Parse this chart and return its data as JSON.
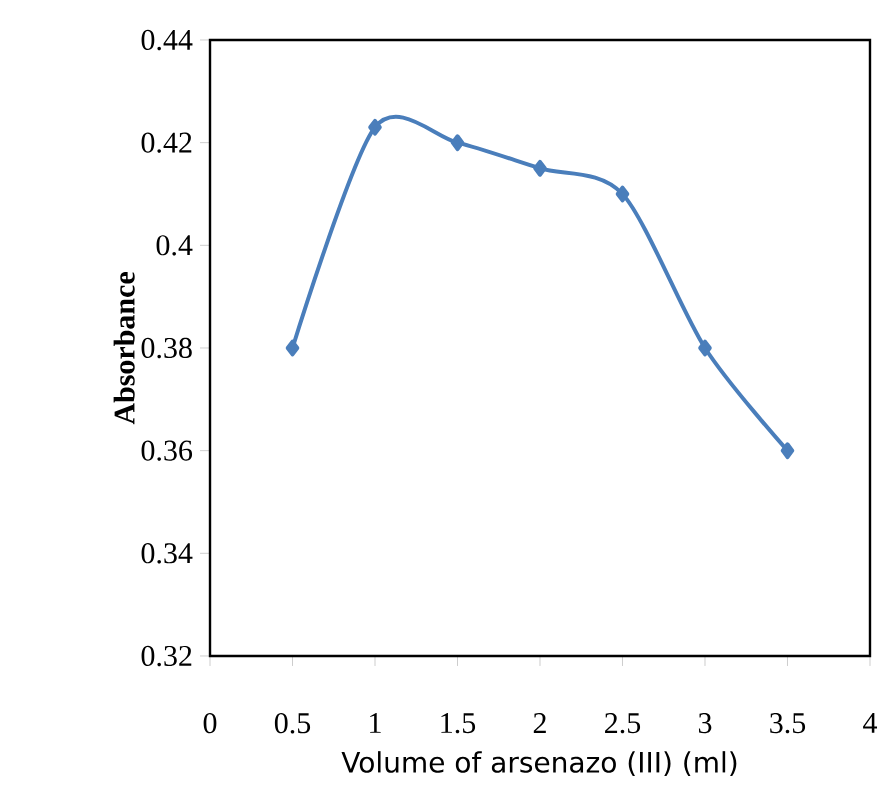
{
  "chart_data": {
    "type": "line",
    "xlabel": "Volume of arsenazo (III) (ml)",
    "ylabel": "Absorbance",
    "x": [
      0.5,
      1,
      1.5,
      2,
      2.5,
      3,
      3.5
    ],
    "series": [
      {
        "color": "#4a7ebb",
        "values": [
          0.38,
          0.423,
          0.42,
          0.415,
          0.41,
          0.38,
          0.36
        ]
      }
    ],
    "xlim": [
      0,
      4
    ],
    "xticks": [
      0,
      0.5,
      1,
      1.5,
      2,
      2.5,
      3,
      3.5,
      4
    ],
    "ylim": [
      0.32,
      0.44
    ],
    "yticks": [
      0.32,
      0.34,
      0.36,
      0.38,
      0.4,
      0.42,
      0.44
    ],
    "marker": "diamond",
    "line_style": "solid",
    "grid": false,
    "legend": false
  }
}
